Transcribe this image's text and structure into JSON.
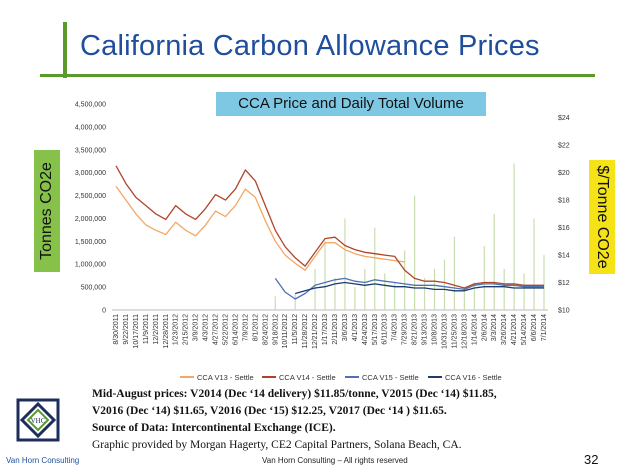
{
  "title": "California Carbon Allowance Prices",
  "chart_data": {
    "type": "line",
    "title": "CCA Price and Daily Total Volume",
    "ylabel_left": "Tonnes CO2e",
    "ylabel_right": "$/Tonne CO2e",
    "left_axis": {
      "min": 0,
      "max": 4500000,
      "ticks": [
        "0",
        "500,000",
        "1,000,000",
        "1,500,000",
        "2,000,000",
        "2,500,000",
        "3,000,000",
        "3,500,000",
        "4,000,000",
        "4,500,000"
      ]
    },
    "right_axis": {
      "min": 10,
      "max": 25,
      "ticks": [
        "$10",
        "$12",
        "$14",
        "$16",
        "$18",
        "$20",
        "$22",
        "$24"
      ]
    },
    "x_ticks": [
      "8/30/2011",
      "9/22/2011",
      "10/17/2011",
      "11/9/2011",
      "12/2/2011",
      "12/28/2011",
      "1/23/2012",
      "2/15/2012",
      "3/9/2012",
      "4/3/2012",
      "4/27/2012",
      "5/22/2012",
      "6/14/2012",
      "7/9/2012",
      "8/1/2012",
      "8/24/2012",
      "9/18/2012",
      "10/11/2012",
      "11/5/2012",
      "11/28/2012",
      "12/21/2012",
      "1/17/2013",
      "2/11/2013",
      "3/6/2013",
      "4/1/2013",
      "4/24/2013",
      "5/17/2013",
      "6/11/2013",
      "7/4/2013",
      "7/29/2013",
      "8/21/2013",
      "9/13/2013",
      "10/8/2013",
      "10/31/2013",
      "11/25/2013",
      "12/18/2013",
      "1/14/2014",
      "2/6/2014",
      "3/3/2014",
      "3/26/2014",
      "4/21/2014",
      "5/14/2014",
      "6/6/2014",
      "7/1/2014"
    ],
    "series": [
      {
        "name": "CCA V13 - Settle",
        "color": "#f2a765",
        "x": [
          0,
          1,
          2,
          3,
          4,
          5,
          6,
          7,
          8,
          9,
          10,
          11,
          12,
          13,
          14,
          15,
          16,
          17,
          18,
          19,
          20,
          21,
          22,
          23,
          24,
          25,
          26,
          27,
          28,
          29
        ],
        "y": [
          19.0,
          18.0,
          17.0,
          16.2,
          15.8,
          15.5,
          16.4,
          15.8,
          15.4,
          16.2,
          17.2,
          16.8,
          17.6,
          18.8,
          18.2,
          16.5,
          15.0,
          14.0,
          13.4,
          12.9,
          13.9,
          14.9,
          14.9,
          14.4,
          14.1,
          13.9,
          13.8,
          13.7,
          13.6,
          13.5
        ]
      },
      {
        "name": "CCA V14 - Settle",
        "color": "#b0442a",
        "x": [
          0,
          1,
          2,
          3,
          4,
          5,
          6,
          7,
          8,
          9,
          10,
          11,
          12,
          13,
          14,
          15,
          16,
          17,
          18,
          19,
          20,
          21,
          22,
          23,
          24,
          25,
          26,
          27,
          28,
          29,
          30,
          31,
          32,
          33,
          34,
          35,
          36,
          37,
          38,
          39,
          40,
          41,
          42,
          43
        ],
        "y": [
          20.5,
          19.2,
          18.2,
          17.6,
          17.0,
          16.6,
          17.6,
          17.0,
          16.6,
          17.4,
          18.4,
          18.0,
          18.8,
          20.2,
          19.4,
          17.6,
          15.8,
          14.6,
          13.8,
          13.2,
          14.2,
          15.2,
          15.3,
          14.7,
          14.4,
          14.2,
          14.1,
          14.0,
          13.9,
          12.9,
          12.3,
          12.1,
          12.1,
          12.0,
          11.8,
          11.6,
          11.9,
          12.0,
          12.0,
          11.9,
          11.9,
          11.8,
          11.8,
          11.8
        ]
      },
      {
        "name": "CCA V15 - Settle",
        "color": "#4c73b5",
        "x": [
          16,
          17,
          18,
          19,
          20,
          21,
          22,
          23,
          24,
          25,
          26,
          27,
          28,
          29,
          30,
          31,
          32,
          33,
          34,
          35,
          36,
          37,
          38,
          39,
          40,
          41,
          42,
          43
        ],
        "y": [
          12.3,
          11.3,
          10.8,
          11.2,
          11.8,
          12.0,
          12.2,
          12.3,
          12.1,
          12.0,
          12.2,
          12.1,
          12.0,
          11.9,
          11.8,
          11.8,
          11.8,
          11.7,
          11.6,
          11.5,
          11.8,
          11.9,
          11.9,
          11.8,
          11.8,
          11.7,
          11.7,
          11.7
        ]
      },
      {
        "name": "CCA V16 - Settle",
        "color": "#1e3c6e",
        "x": [
          18,
          19,
          20,
          21,
          22,
          23,
          24,
          25,
          26,
          27,
          28,
          29,
          30,
          31,
          32,
          33,
          34,
          35,
          36,
          37,
          38,
          39,
          40,
          41,
          42,
          43
        ],
        "y": [
          11.2,
          11.4,
          11.6,
          11.7,
          11.9,
          12.0,
          11.9,
          11.8,
          11.9,
          11.8,
          11.7,
          11.7,
          11.6,
          11.6,
          11.5,
          11.5,
          11.4,
          11.4,
          11.6,
          11.7,
          11.7,
          11.7,
          11.6,
          11.6,
          11.6,
          11.6
        ]
      }
    ],
    "volume": {
      "name": "Daily Total Volume",
      "color": "#c9ddb0",
      "x": [
        16,
        18,
        20,
        21,
        22,
        23,
        24,
        25,
        26,
        27,
        28,
        29,
        30,
        31,
        32,
        33,
        34,
        35,
        36,
        37,
        38,
        39,
        40,
        41,
        42,
        43
      ],
      "y": [
        300000,
        350000,
        900000,
        1500000,
        700000,
        2000000,
        500000,
        900000,
        1800000,
        800000,
        600000,
        1300000,
        2500000,
        700000,
        900000,
        1100000,
        1600000,
        400000,
        600000,
        1400000,
        2100000,
        900000,
        3200000,
        800000,
        2000000,
        1200000
      ]
    },
    "legend_placement": "bottom"
  },
  "notes": {
    "line1": "Mid-August prices: V2014 (Dec ‘14 delivery) $11.85/tonne, V2015 (Dec ‘14) $11.85,",
    "line2": "V2016 (Dec ‘14) $11.65, V2016 (Dec ‘15) $12.25, V2017 (Dec ‘14 ) $11.65.",
    "line3": "Source of Data: Intercontinental Exchange (ICE).",
    "line4": "Graphic provided by Morgan Hagerty, CE2 Capital Partners, Solana Beach, CA."
  },
  "logo_text": "VHC",
  "firm": "Van Horn Consulting",
  "footer": "Van Horn Consulting – All rights reserved",
  "page_number": "32"
}
